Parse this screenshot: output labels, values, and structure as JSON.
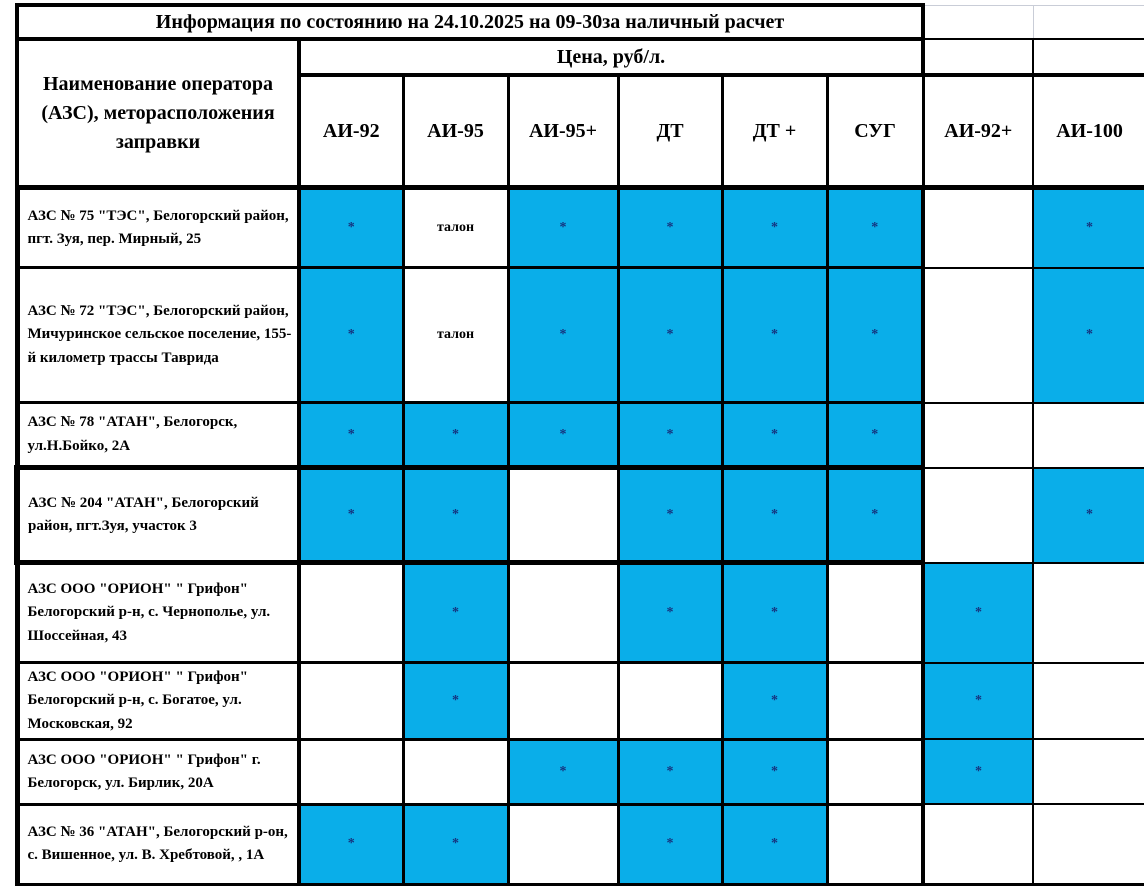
{
  "title": "Информация по состоянию на 24.10.2025 на 09-30за наличный расчет",
  "table": {
    "name_header": "Наименование оператора (АЗС), меторасположения заправки",
    "price_header": "Цена, руб/л.",
    "fuel_columns": [
      "АИ-92",
      "АИ-95",
      "АИ-95+",
      "ДТ",
      "ДТ +",
      "СУГ",
      "АИ-92+",
      "АИ-100"
    ],
    "legend": {
      "available_marker": "*",
      "coupon_marker": "талон"
    },
    "colors": {
      "available_bg": "#0aaee9",
      "marker_color": "#16337e",
      "grid": "#000000"
    },
    "rows": [
      {
        "name": "АЗС № 75 \"ТЭС\", Белогорский район, пгт. Зуя, пер. Мирный, 25",
        "thick_border": false,
        "cells": [
          {
            "text": "*",
            "highlight": true
          },
          {
            "text": "талон",
            "highlight": false
          },
          {
            "text": "*",
            "highlight": true
          },
          {
            "text": "*",
            "highlight": true
          },
          {
            "text": "*",
            "highlight": true
          },
          {
            "text": "*",
            "highlight": true
          },
          {
            "text": "",
            "highlight": false
          },
          {
            "text": "*",
            "highlight": true
          }
        ]
      },
      {
        "name": "АЗС № 72 \"ТЭС\", Белогорский район, Мичуринское сельское поселение, 155-й километр трассы Таврида",
        "thick_border": false,
        "cells": [
          {
            "text": "*",
            "highlight": true
          },
          {
            "text": "талон",
            "highlight": false
          },
          {
            "text": "*",
            "highlight": true
          },
          {
            "text": "*",
            "highlight": true
          },
          {
            "text": "*",
            "highlight": true
          },
          {
            "text": "*",
            "highlight": true
          },
          {
            "text": "",
            "highlight": false
          },
          {
            "text": "*",
            "highlight": true
          }
        ]
      },
      {
        "name": "АЗС № 78 \"АТАН\", Белогорск, ул.Н.Бойко, 2А",
        "thick_border": false,
        "cells": [
          {
            "text": "*",
            "highlight": true
          },
          {
            "text": "*",
            "highlight": true
          },
          {
            "text": "*",
            "highlight": true
          },
          {
            "text": "*",
            "highlight": true
          },
          {
            "text": "*",
            "highlight": true
          },
          {
            "text": "*",
            "highlight": true
          },
          {
            "text": "",
            "highlight": false
          },
          {
            "text": "",
            "highlight": false
          }
        ]
      },
      {
        "name": "АЗС № 204 \"АТАН\", Белогорский район, пгт.Зуя, участок 3",
        "thick_border": true,
        "cells": [
          {
            "text": "*",
            "highlight": true
          },
          {
            "text": "*",
            "highlight": true
          },
          {
            "text": "",
            "highlight": false
          },
          {
            "text": "*",
            "highlight": true
          },
          {
            "text": "*",
            "highlight": true
          },
          {
            "text": "*",
            "highlight": true
          },
          {
            "text": "",
            "highlight": false
          },
          {
            "text": "*",
            "highlight": true
          }
        ]
      },
      {
        "name": "АЗС ООО \"ОРИОН\" \" Грифон\" Белогорский р-н, с. Чернополье, ул. Шоссейная, 43",
        "thick_border": false,
        "cells": [
          {
            "text": "",
            "highlight": false
          },
          {
            "text": "*",
            "highlight": true
          },
          {
            "text": "",
            "highlight": false
          },
          {
            "text": "*",
            "highlight": true
          },
          {
            "text": "*",
            "highlight": true
          },
          {
            "text": "",
            "highlight": false
          },
          {
            "text": "*",
            "highlight": true
          },
          {
            "text": "",
            "highlight": false
          }
        ]
      },
      {
        "name": "АЗС ООО \"ОРИОН\" \" Грифон\" Белогорский р-н, с. Богатое, ул. Московская, 92",
        "thick_border": false,
        "cells": [
          {
            "text": "",
            "highlight": false
          },
          {
            "text": "*",
            "highlight": true
          },
          {
            "text": "",
            "highlight": false
          },
          {
            "text": "",
            "highlight": false
          },
          {
            "text": "*",
            "highlight": true
          },
          {
            "text": "",
            "highlight": false
          },
          {
            "text": "*",
            "highlight": true
          },
          {
            "text": "",
            "highlight": false
          }
        ]
      },
      {
        "name": "АЗС ООО \"ОРИОН\" \" Грифон\" г. Белогорск, ул. Бирлик, 20А",
        "thick_border": false,
        "cells": [
          {
            "text": "",
            "highlight": false
          },
          {
            "text": "",
            "highlight": false
          },
          {
            "text": "*",
            "highlight": true
          },
          {
            "text": "*",
            "highlight": true
          },
          {
            "text": "*",
            "highlight": true
          },
          {
            "text": "",
            "highlight": false
          },
          {
            "text": "*",
            "highlight": true
          },
          {
            "text": "",
            "highlight": false
          }
        ]
      },
      {
        "name": "АЗС № 36 \"АТАН\", Белогорский р-он, с. Вишенное, ул. В. Хребтовой, , 1А",
        "thick_border": false,
        "cells": [
          {
            "text": "*",
            "highlight": true
          },
          {
            "text": "*",
            "highlight": true
          },
          {
            "text": "",
            "highlight": false
          },
          {
            "text": "*",
            "highlight": true
          },
          {
            "text": "*",
            "highlight": true
          },
          {
            "text": "",
            "highlight": false
          },
          {
            "text": "",
            "highlight": false
          },
          {
            "text": "",
            "highlight": false
          }
        ]
      }
    ]
  }
}
